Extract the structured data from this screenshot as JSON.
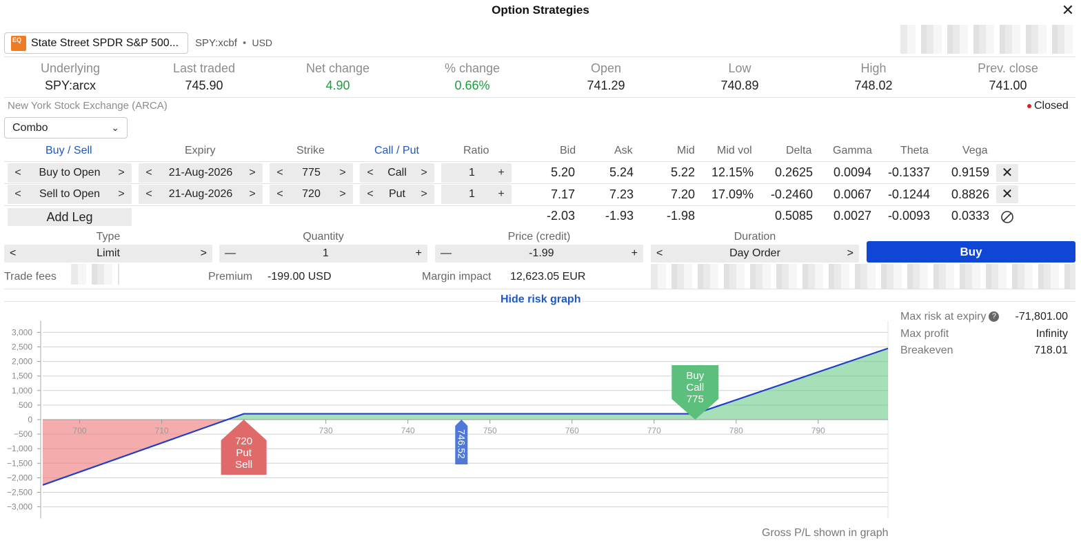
{
  "window": {
    "title": "Option Strategies"
  },
  "instrument": {
    "name": "State Street SPDR S&P 500...",
    "symbol": "SPY:xcbf",
    "currency": "USD",
    "logo_text": "EQ"
  },
  "stats": [
    {
      "label": "Underlying",
      "value": "SPY:arcx"
    },
    {
      "label": "Last traded",
      "value": "745.90"
    },
    {
      "label": "Net change",
      "value": "4.90"
    },
    {
      "label": "% change",
      "value": "0.66%"
    },
    {
      "label": "Open",
      "value": "741.29"
    },
    {
      "label": "Low",
      "value": "740.89"
    },
    {
      "label": "High",
      "value": "748.02"
    },
    {
      "label": "Prev. close",
      "value": "741.00"
    }
  ],
  "exchange": "New York Stock Exchange (ARCA)",
  "market_status": "Closed",
  "strategy": "Combo",
  "legs_header": {
    "buy_sell": "Buy / Sell",
    "expiry": "Expiry",
    "strike": "Strike",
    "call_put": "Call / Put",
    "ratio": "Ratio",
    "bid": "Bid",
    "ask": "Ask",
    "mid": "Mid",
    "mid_vol": "Mid vol",
    "delta": "Delta",
    "gamma": "Gamma",
    "theta": "Theta",
    "vega": "Vega"
  },
  "legs": [
    {
      "side": "Buy to Open",
      "expiry": "21-Aug-2026",
      "strike": "775",
      "type": "Call",
      "ratio": "1",
      "bid": "5.20",
      "ask": "5.24",
      "mid": "5.22",
      "mid_vol": "12.15%",
      "delta": "0.2625",
      "gamma": "0.0094",
      "theta": "-0.1337",
      "vega": "0.9159"
    },
    {
      "side": "Sell to Open",
      "expiry": "21-Aug-2026",
      "strike": "720",
      "type": "Put",
      "ratio": "1",
      "bid": "7.17",
      "ask": "7.23",
      "mid": "7.20",
      "mid_vol": "17.09%",
      "delta": "-0.2460",
      "gamma": "0.0067",
      "theta": "-0.1244",
      "vega": "0.8826"
    }
  ],
  "totals": {
    "bid": "-2.03",
    "ask": "-1.93",
    "mid": "-1.98",
    "delta": "0.5085",
    "gamma": "0.0027",
    "theta": "-0.0093",
    "vega": "0.0333"
  },
  "add_leg": "Add Leg",
  "order": {
    "type_label": "Type",
    "type_value": "Limit",
    "quantity_label": "Quantity",
    "quantity_value": "1",
    "price_label": "Price (credit)",
    "price_value": "-1.99",
    "duration_label": "Duration",
    "duration_value": "Day Order",
    "submit": "Buy"
  },
  "footer": {
    "trade_fees_label": "Trade fees",
    "premium_label": "Premium",
    "premium_value": "-199.00 USD",
    "margin_label": "Margin impact",
    "margin_value": "12,623.05 EUR"
  },
  "hide_graph": "Hide risk graph",
  "risk": {
    "max_risk_label": "Max risk at expiry",
    "max_risk_value": "-71,801.00",
    "max_profit_label": "Max profit",
    "max_profit_value": "Infinity",
    "breakeven_label": "Breakeven",
    "breakeven_value": "718.01"
  },
  "gross_note": "Gross P/L shown in graph",
  "chart_data": {
    "type": "area",
    "x_ticks": [
      700,
      710,
      720,
      730,
      740,
      750,
      760,
      770,
      780,
      790
    ],
    "y_ticks": [
      3000,
      2500,
      2000,
      1500,
      1000,
      500,
      0,
      -500,
      -1000,
      -1500,
      -2000,
      -2500,
      -3000
    ],
    "y_tick_labels": [
      "3,000",
      "2,500",
      "2,000",
      "1,500",
      "1,000",
      "500",
      "0",
      "−500",
      "−1,000",
      "−1,500",
      "−2,000",
      "−2,500",
      "−3,000"
    ],
    "xlim": [
      695.5,
      798.5
    ],
    "ylim": [
      -3400,
      3400
    ],
    "series": [
      {
        "x": [
          695.5,
          720,
          775,
          798.5
        ],
        "y": [
          -2250,
          200,
          200,
          2450
        ]
      }
    ],
    "markers": [
      {
        "text_lines": [
          "720",
          "Put",
          "Sell"
        ],
        "x": 720,
        "color": "#e06a6a",
        "kind": "put"
      },
      {
        "text_lines": [
          "Buy",
          "Call",
          "775"
        ],
        "x": 775,
        "color": "#5cbf7c",
        "kind": "call"
      },
      {
        "text": "746.52",
        "x": 746.52,
        "color": "#4f78d8",
        "kind": "price"
      }
    ]
  }
}
